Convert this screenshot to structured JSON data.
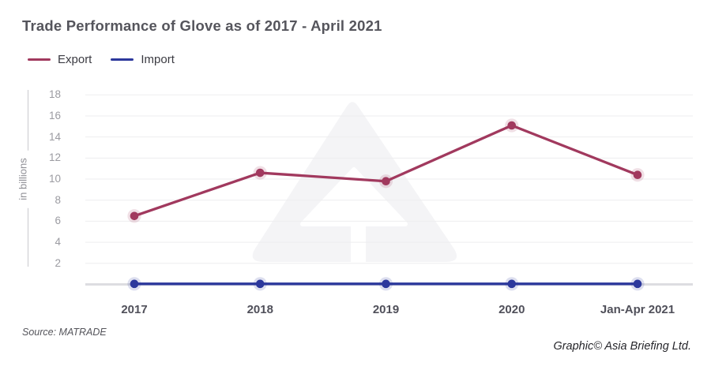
{
  "header": {
    "title": "Trade Performance of Glove as of 2017 - April 2021"
  },
  "chart_data": {
    "type": "line",
    "title": "Trade Performance of Glove as of 2017 - April 2021",
    "categories": [
      "2017",
      "2018",
      "2019",
      "2020",
      "Jan-Apr 2021"
    ],
    "series": [
      {
        "name": "Export",
        "color": "#A1395E",
        "values": [
          6.5,
          10.6,
          9.8,
          15.1,
          10.4
        ]
      },
      {
        "name": "Import",
        "color": "#2C389C",
        "values": [
          0.05,
          0.05,
          0.05,
          0.05,
          0.05
        ]
      }
    ],
    "xlabel": "",
    "ylabel": "in billions",
    "y_ticks": [
      2,
      4,
      6,
      8,
      10,
      12,
      14,
      16,
      18
    ],
    "ylim": [
      0,
      18
    ],
    "grid": "horizontal",
    "legend_position": "top-left"
  },
  "colors": {
    "export": "#A1395E",
    "import": "#2C389C",
    "grid": "#EDEDEF",
    "baseline": "#DDDDE1",
    "axis_line": "#C9C9CE",
    "title_text": "#55555C",
    "tick_label": "#9B9BA1",
    "x_label": "#50505A",
    "watermark": "#F4F4F6"
  },
  "footer": {
    "source": "Source: MATRADE",
    "credit": "Graphic© Asia Briefing Ltd."
  }
}
